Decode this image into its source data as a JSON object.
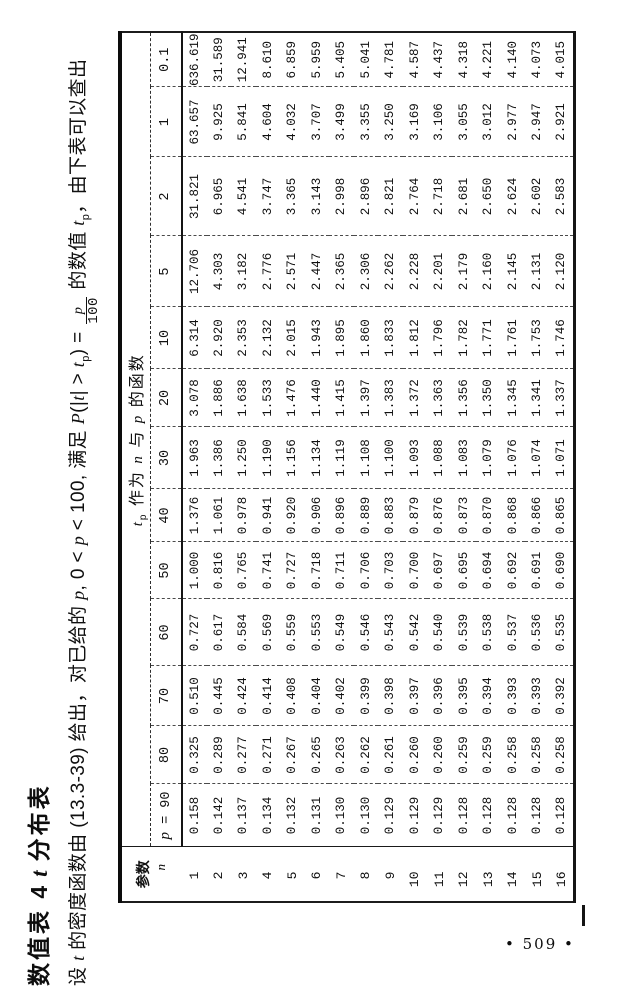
{
  "page": {
    "title_part1": "数值表 4",
    "title_italic": "t",
    "title_part2": "分布表",
    "page_number": "• 509 •"
  },
  "intro": {
    "seg_she": "设 ",
    "var_t1": "t",
    "seg_density": " 的密度函数由 (13.3-39) 给出，对已给的 ",
    "var_p1": "p",
    "seg_range1": ", 0 < ",
    "var_p2": "p",
    "seg_range2": " < 100, 满足 ",
    "var_P": "P",
    "seg_paren1": "(|",
    "var_t2": "t",
    "seg_paren2": "| > ",
    "var_t3": "t",
    "sub_p1": "p",
    "seg_eq": ") = ",
    "frac_num": "p",
    "frac_den": "100",
    "seg_value": " 的数值 ",
    "var_t4": "t",
    "sub_p2": "p",
    "seg_end": "，由下表可以查出"
  },
  "table": {
    "span_header": {
      "t": "t",
      "sub": "p",
      "rest1": " 作为 ",
      "n": "n",
      "rest2": " 与 ",
      "p": "p",
      "rest3": " 的函数"
    },
    "stub": {
      "line1": "参数",
      "line2": "n"
    },
    "col_label_prefix": {
      "symbol": "p",
      "equals": " = "
    },
    "col_labels": [
      "90",
      "80",
      "70",
      "60",
      "50",
      "40",
      "30",
      "20",
      "10",
      "5",
      "2",
      "1",
      "0.1"
    ],
    "rows": [
      {
        "n": "1",
        "values": [
          "0.158",
          "0.325",
          "0.510",
          "0.727",
          "1.000",
          "1.376",
          "1.963",
          "3.078",
          "6.314",
          "12.706",
          "31.821",
          "63.657",
          "636.619"
        ]
      },
      {
        "n": "2",
        "values": [
          "0.142",
          "0.289",
          "0.445",
          "0.617",
          "0.816",
          "1.061",
          "1.386",
          "1.886",
          "2.920",
          "4.303",
          "6.965",
          "9.925",
          "31.589"
        ]
      },
      {
        "n": "3",
        "values": [
          "0.137",
          "0.277",
          "0.424",
          "0.584",
          "0.765",
          "0.978",
          "1.250",
          "1.638",
          "2.353",
          "3.182",
          "4.541",
          "5.841",
          "12.941"
        ]
      },
      {
        "n": "4",
        "values": [
          "0.134",
          "0.271",
          "0.414",
          "0.569",
          "0.741",
          "0.941",
          "1.190",
          "1.533",
          "2.132",
          "2.776",
          "3.747",
          "4.604",
          "8.610"
        ]
      },
      {
        "n": "5",
        "values": [
          "0.132",
          "0.267",
          "0.408",
          "0.559",
          "0.727",
          "0.920",
          "1.156",
          "1.476",
          "2.015",
          "2.571",
          "3.365",
          "4.032",
          "6.859"
        ]
      },
      {
        "n": "6",
        "values": [
          "0.131",
          "0.265",
          "0.404",
          "0.553",
          "0.718",
          "0.906",
          "1.134",
          "1.440",
          "1.943",
          "2.447",
          "3.143",
          "3.707",
          "5.959"
        ]
      },
      {
        "n": "7",
        "values": [
          "0.130",
          "0.263",
          "0.402",
          "0.549",
          "0.711",
          "0.896",
          "1.119",
          "1.415",
          "1.895",
          "2.365",
          "2.998",
          "3.499",
          "5.405"
        ]
      },
      {
        "n": "8",
        "values": [
          "0.130",
          "0.262",
          "0.399",
          "0.546",
          "0.706",
          "0.889",
          "1.108",
          "1.397",
          "1.860",
          "2.306",
          "2.896",
          "3.355",
          "5.041"
        ]
      },
      {
        "n": "9",
        "values": [
          "0.129",
          "0.261",
          "0.398",
          "0.543",
          "0.703",
          "0.883",
          "1.100",
          "1.383",
          "1.833",
          "2.262",
          "2.821",
          "3.250",
          "4.781"
        ]
      },
      {
        "n": "10",
        "values": [
          "0.129",
          "0.260",
          "0.397",
          "0.542",
          "0.700",
          "0.879",
          "1.093",
          "1.372",
          "1.812",
          "2.228",
          "2.764",
          "3.169",
          "4.587"
        ]
      },
      {
        "n": "11",
        "values": [
          "0.129",
          "0.260",
          "0.396",
          "0.540",
          "0.697",
          "0.876",
          "1.088",
          "1.363",
          "1.796",
          "2.201",
          "2.718",
          "3.106",
          "4.437"
        ]
      },
      {
        "n": "12",
        "values": [
          "0.128",
          "0.259",
          "0.395",
          "0.539",
          "0.695",
          "0.873",
          "1.083",
          "1.356",
          "1.782",
          "2.179",
          "2.681",
          "3.055",
          "4.318"
        ]
      },
      {
        "n": "13",
        "values": [
          "0.128",
          "0.259",
          "0.394",
          "0.538",
          "0.694",
          "0.870",
          "1.079",
          "1.350",
          "1.771",
          "2.160",
          "2.650",
          "3.012",
          "4.221"
        ]
      },
      {
        "n": "14",
        "values": [
          "0.128",
          "0.258",
          "0.393",
          "0.537",
          "0.692",
          "0.868",
          "1.076",
          "1.345",
          "1.761",
          "2.145",
          "2.624",
          "2.977",
          "4.140"
        ]
      },
      {
        "n": "15",
        "values": [
          "0.128",
          "0.258",
          "0.393",
          "0.536",
          "0.691",
          "0.866",
          "1.074",
          "1.341",
          "1.753",
          "2.131",
          "2.602",
          "2.947",
          "4.073"
        ]
      },
      {
        "n": "16",
        "values": [
          "0.128",
          "0.258",
          "0.392",
          "0.535",
          "0.690",
          "0.865",
          "1.071",
          "1.337",
          "1.746",
          "2.120",
          "2.583",
          "2.921",
          "4.015"
        ]
      }
    ]
  }
}
